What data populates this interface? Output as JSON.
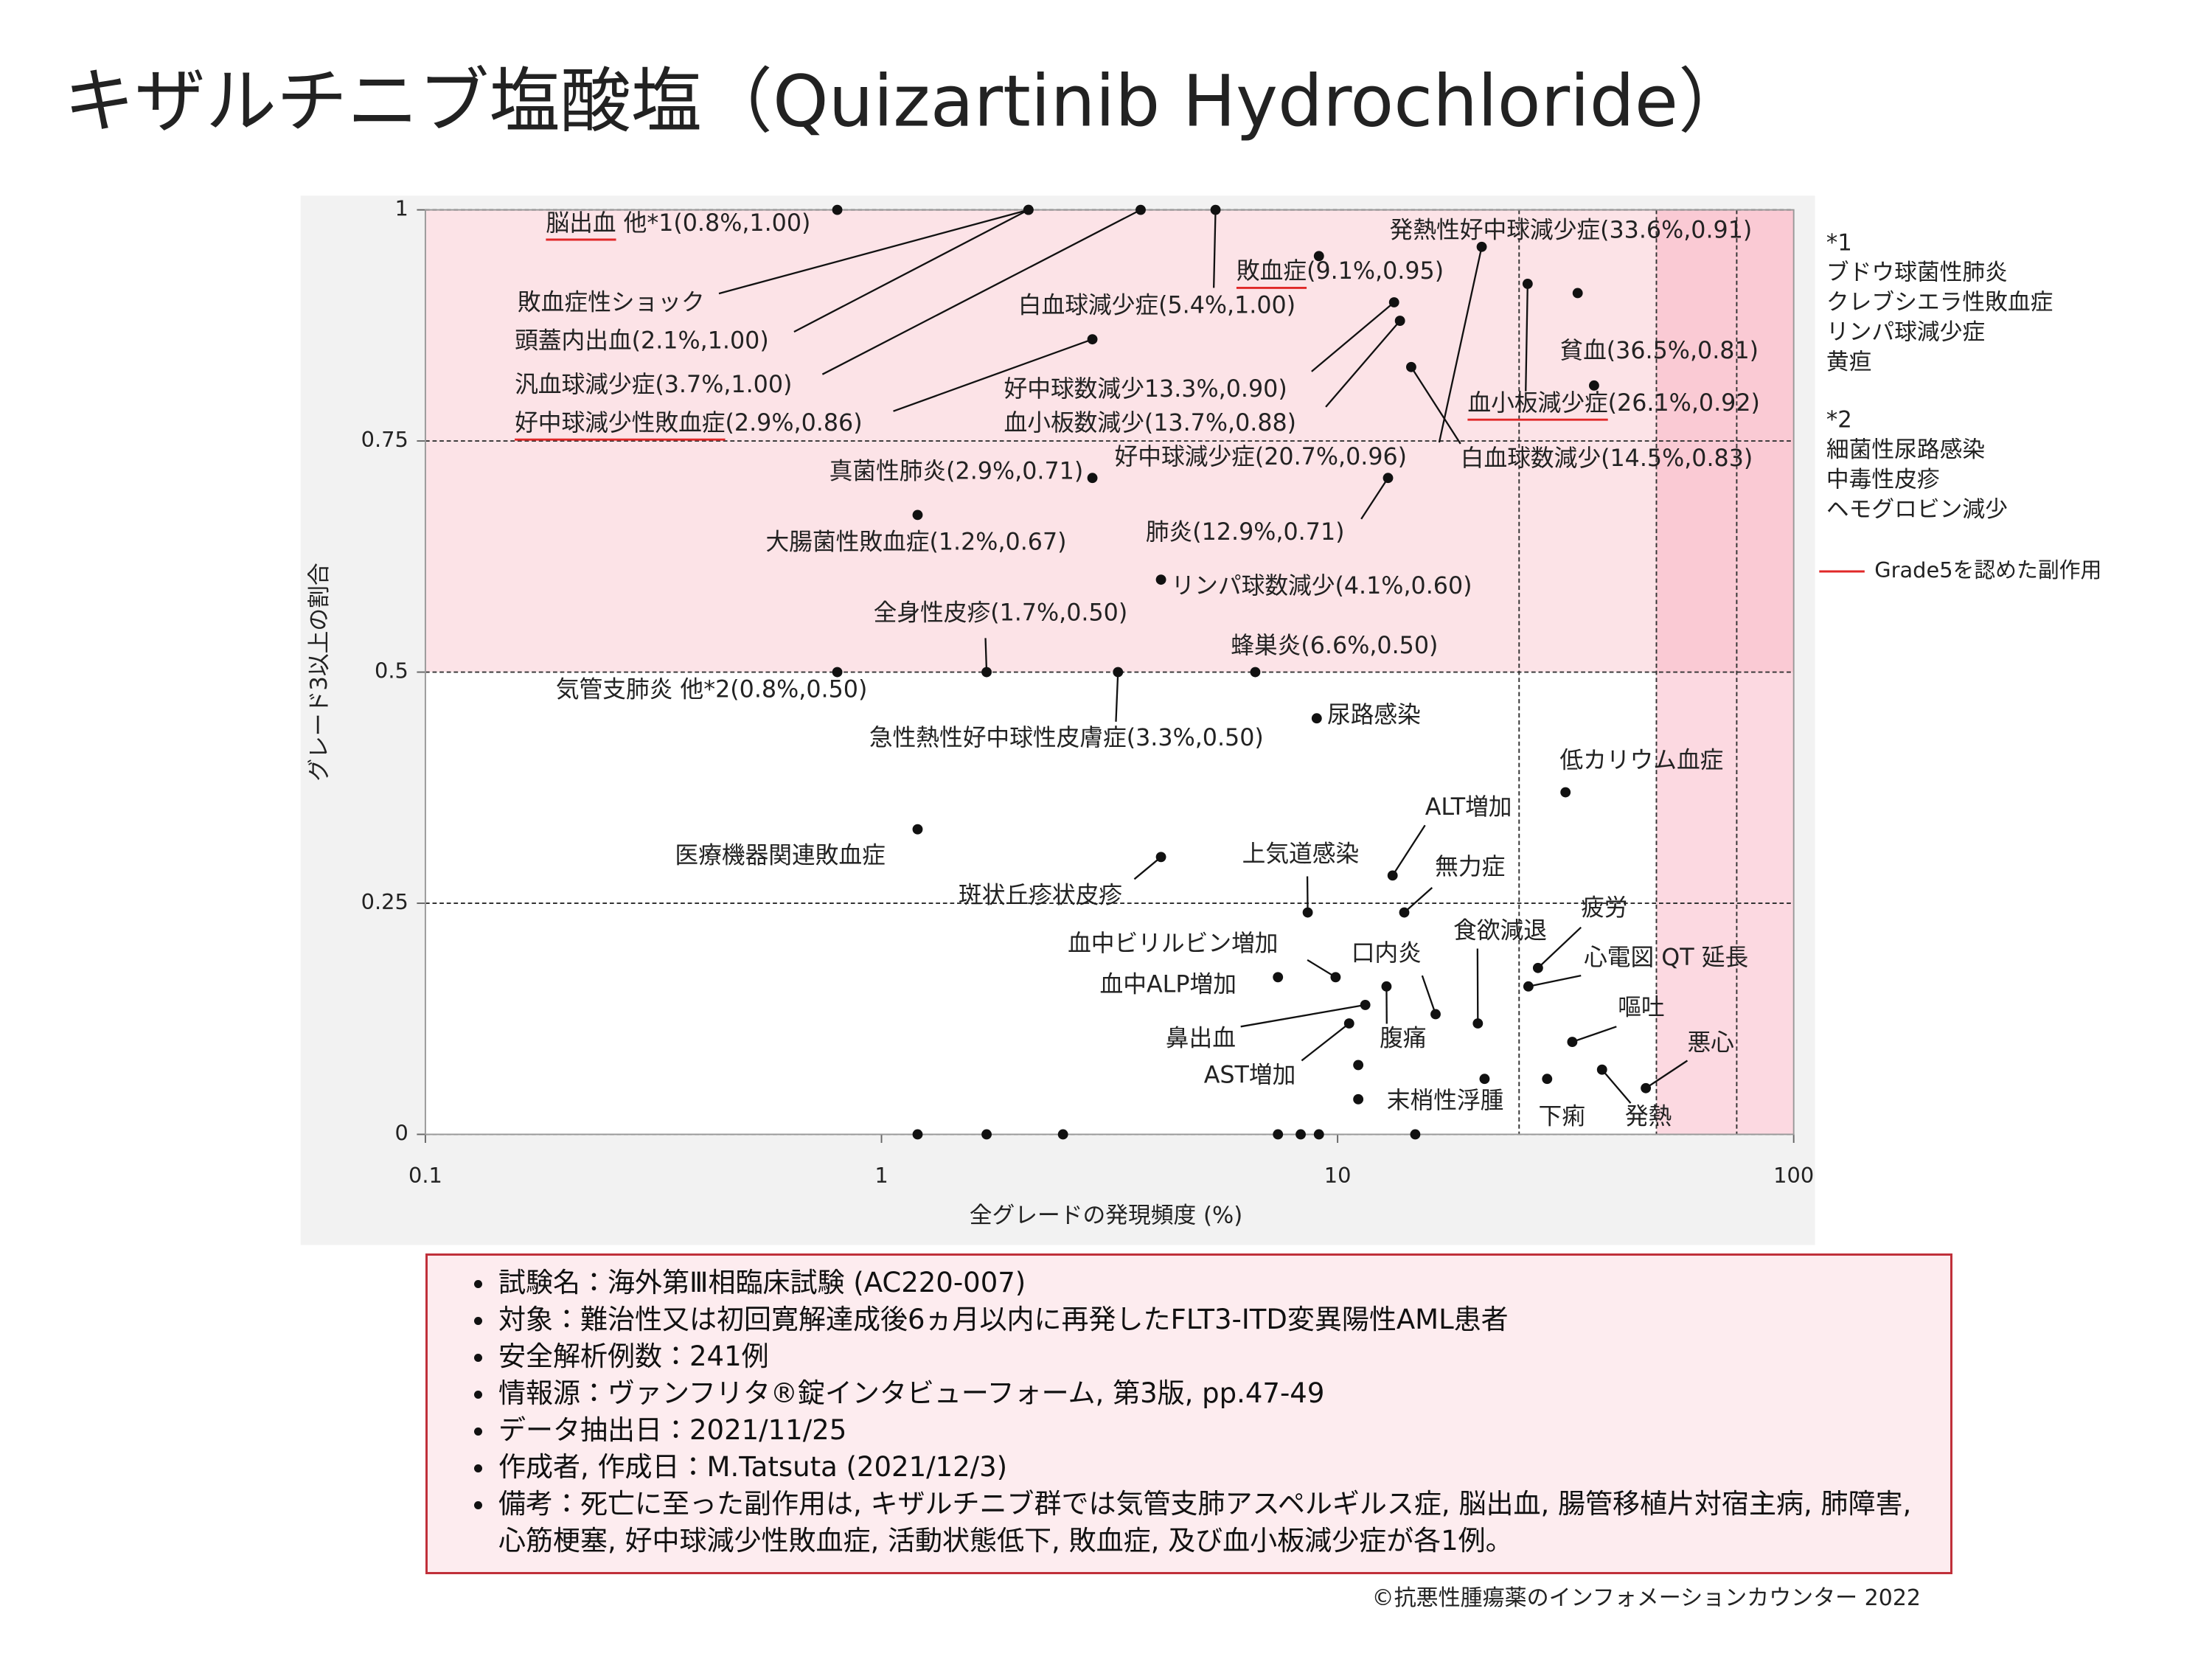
{
  "header": {
    "title": "キザルチニブ塩酸塩（Quizartinib Hydrochloride）"
  },
  "chart_data": {
    "type": "scatter",
    "xlabel": "全グレードの発現頻度 (%)",
    "ylabel": "グレード3以上の割合",
    "xscale": "log",
    "xlim": [
      0.1,
      100
    ],
    "xticks": [
      0.1,
      1,
      10,
      100
    ],
    "ylim": [
      0,
      1
    ],
    "yticks": [
      0,
      0.25,
      0.5,
      0.75,
      1
    ],
    "grid": "dashed",
    "x_reference_lines": [
      25,
      50,
      75
    ],
    "shaded_regions": [
      {
        "ylim": [
          0.5,
          1
        ],
        "color": "rgba(250,200,208,0.5)"
      },
      {
        "xlim": [
          50,
          100
        ],
        "color": "rgba(248,170,188,0.45)"
      }
    ],
    "point_color": "#111111",
    "grade5_legend": {
      "label": "Grade5を認めた副作用",
      "color": "#e02828"
    },
    "points": [
      {
        "x": 0.8,
        "y": 1.0,
        "label": "脳出血 他*1(0.8%,1.00)",
        "grade5": true
      },
      {
        "x": 2.1,
        "y": 1.0,
        "label": "敗血症性ショック"
      },
      {
        "x": 2.1,
        "y": 1.0,
        "label": "頭蓋内出血(2.1%,1.00)"
      },
      {
        "x": 3.7,
        "y": 1.0,
        "label": "汎血球減少症(3.7%,1.00)"
      },
      {
        "x": 5.4,
        "y": 1.0,
        "label": "白血球減少症(5.4%,1.00)"
      },
      {
        "x": 9.1,
        "y": 0.95,
        "label": "敗血症(9.1%,0.95)",
        "grade5": true
      },
      {
        "x": 20.7,
        "y": 0.96,
        "label": "好中球減少症(20.7%,0.96)"
      },
      {
        "x": 26.1,
        "y": 0.92,
        "label": "血小板減少症(26.1%,0.92)",
        "grade5": true
      },
      {
        "x": 33.6,
        "y": 0.91,
        "label": "発熱性好中球減少症(33.6%,0.91)"
      },
      {
        "x": 36.5,
        "y": 0.81,
        "label": "貧血(36.5%,0.81)"
      },
      {
        "x": 13.3,
        "y": 0.9,
        "label": "好中球数減少13.3%,0.90)"
      },
      {
        "x": 13.7,
        "y": 0.88,
        "label": "血小板数減少(13.7%,0.88)"
      },
      {
        "x": 14.5,
        "y": 0.83,
        "label": "白血球数減少(14.5%,0.83)"
      },
      {
        "x": 2.9,
        "y": 0.86,
        "label": "好中球減少性敗血症(2.9%,0.86)",
        "grade5": true
      },
      {
        "x": 2.9,
        "y": 0.71,
        "label": "真菌性肺炎(2.9%,0.71)"
      },
      {
        "x": 12.9,
        "y": 0.71,
        "label": "肺炎(12.9%,0.71)"
      },
      {
        "x": 1.2,
        "y": 0.67,
        "label": "大腸菌性敗血症(1.2%,0.67)"
      },
      {
        "x": 4.1,
        "y": 0.6,
        "label": "リンパ球数減少(4.1%,0.60)"
      },
      {
        "x": 1.7,
        "y": 0.5,
        "label": "全身性皮疹(1.7%,0.50)"
      },
      {
        "x": 0.8,
        "y": 0.5,
        "label": "気管支肺炎 他*2(0.8%,0.50)"
      },
      {
        "x": 3.3,
        "y": 0.5,
        "label": "急性熱性好中球性皮膚症(3.3%,0.50)"
      },
      {
        "x": 6.6,
        "y": 0.5,
        "label": "蜂巣炎(6.6%,0.50)"
      },
      {
        "x": 9.0,
        "y": 0.45,
        "label": "尿路感染"
      },
      {
        "x": 31.6,
        "y": 0.37,
        "label": "低カリウム血症"
      },
      {
        "x": 1.2,
        "y": 0.33,
        "label": "医療機器関連敗血症"
      },
      {
        "x": 4.1,
        "y": 0.3,
        "label": "斑状丘疹状皮疹"
      },
      {
        "x": 13.2,
        "y": 0.28,
        "label": "ALT増加"
      },
      {
        "x": 8.6,
        "y": 0.24,
        "label": "上気道感染"
      },
      {
        "x": 14.0,
        "y": 0.24,
        "label": "無力症"
      },
      {
        "x": 27.5,
        "y": 0.18,
        "label": "疲労"
      },
      {
        "x": 26.2,
        "y": 0.16,
        "label": "心電図 QT 延長"
      },
      {
        "x": 9.9,
        "y": 0.17,
        "label": "血中ビリルビン増加"
      },
      {
        "x": 7.4,
        "y": 0.17,
        "label": "血中ALP増加"
      },
      {
        "x": 16.4,
        "y": 0.13,
        "label": "口内炎"
      },
      {
        "x": 12.8,
        "y": 0.16,
        "label": "腹痛"
      },
      {
        "x": 20.3,
        "y": 0.12,
        "label": "食欲減退"
      },
      {
        "x": 11.5,
        "y": 0.14,
        "label": "鼻出血"
      },
      {
        "x": 10.6,
        "y": 0.12,
        "label": "AST増加"
      },
      {
        "x": 32.7,
        "y": 0.1,
        "label": "嘔吐"
      },
      {
        "x": 47.4,
        "y": 0.05,
        "label": "悪心"
      },
      {
        "x": 38.0,
        "y": 0.07,
        "label": "発熱"
      },
      {
        "x": 28.8,
        "y": 0.06,
        "label": "下痢"
      },
      {
        "x": 21.0,
        "y": 0.06,
        "label": "末梢性浮腫"
      },
      {
        "x": 11.1,
        "y": 0.075
      },
      {
        "x": 11.1,
        "y": 0.038
      },
      {
        "x": 1.2,
        "y": 0
      },
      {
        "x": 1.7,
        "y": 0
      },
      {
        "x": 2.5,
        "y": 0
      },
      {
        "x": 7.4,
        "y": 0
      },
      {
        "x": 8.3,
        "y": 0
      },
      {
        "x": 9.1,
        "y": 0
      },
      {
        "x": 14.8,
        "y": 0
      }
    ]
  },
  "notes": [
    {
      "title": "*1",
      "items": [
        "ブドウ球菌性肺炎",
        "クレブシエラ性敗血症",
        "リンパ球減少症",
        "黄疸"
      ]
    },
    {
      "title": "*2",
      "items": [
        "細菌性尿路感染",
        "中毒性皮疹",
        "ヘモグロビン減少"
      ]
    }
  ],
  "info_box": {
    "items": [
      "試験名：海外第Ⅲ相臨床試験 (AC220-007)",
      "対象：難治性又は初回寛解達成後6ヵ月以内に再発したFLT3-ITD変異陽性AML患者",
      "安全解析例数：241例",
      "情報源：ヴァンフリタ®錠インタビューフォーム, 第3版, pp.47-49",
      "データ抽出日：2021/11/25",
      "作成者, 作成日：M.Tatsuta (2021/12/3)",
      "備考：死亡に至った副作用は, キザルチニブ群では気管支肺アスペルギルス症, 脳出血, 腸管移植片対宿主病, 肺障害, 心筋梗塞, 好中球減少性敗血症, 活動状態低下, 敗血症, 及び血小板減少症が各1例。"
    ]
  },
  "footer": {
    "copyright": "©抗悪性腫瘍薬のインフォメーションカウンター 2022"
  }
}
